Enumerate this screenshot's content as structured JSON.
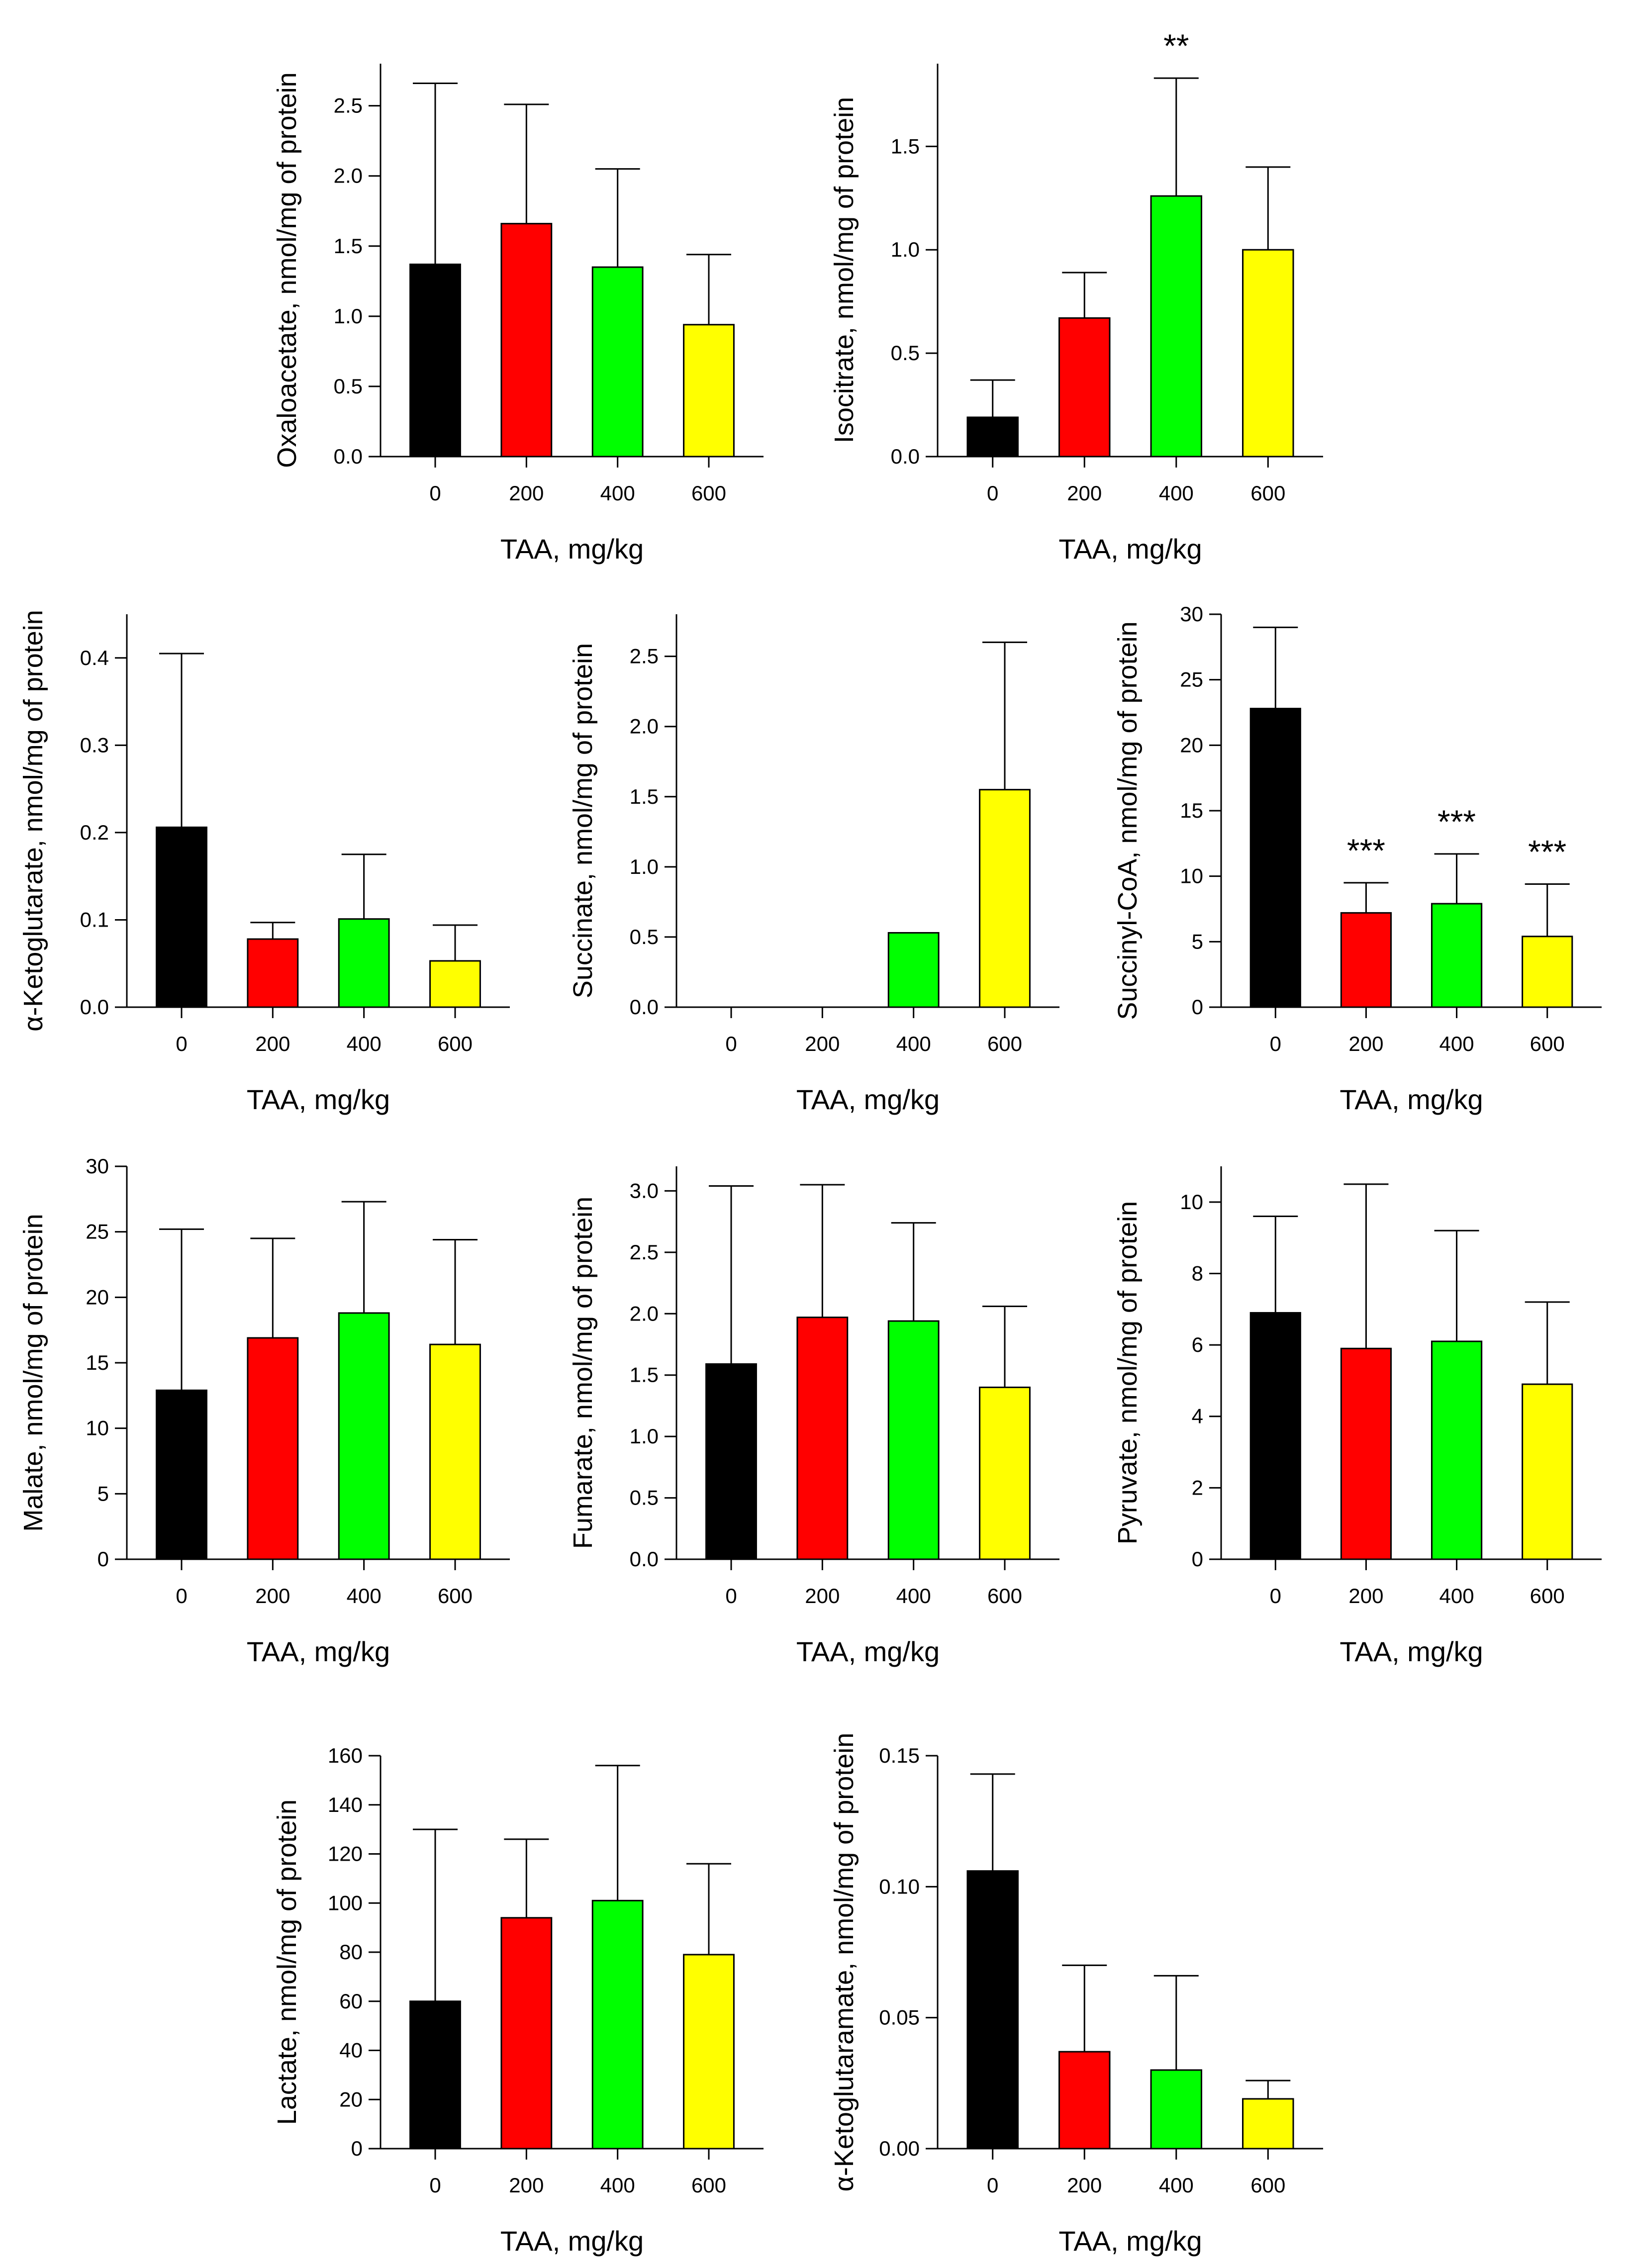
{
  "chart_data": [
    {
      "id": "oxaloacetate",
      "type": "bar",
      "categories": [
        "0",
        "200",
        "400",
        "600"
      ],
      "values": [
        1.37,
        1.66,
        1.35,
        0.94
      ],
      "errors": [
        1.29,
        0.85,
        0.7,
        0.5
      ],
      "significance": [
        "",
        "",
        "",
        ""
      ],
      "colors": [
        "#000000",
        "#ff0000",
        "#00ff00",
        "#ffff00"
      ],
      "ylabel": "Oxaloacetate, nmol/mg of protein",
      "xlabel": "TAA, mg/kg",
      "ylim": [
        0,
        2.8
      ],
      "yticks": [
        "0.0",
        "0.5",
        "1.0",
        "1.5",
        "2.0",
        "2.5"
      ]
    },
    {
      "id": "isocitrate",
      "type": "bar",
      "categories": [
        "0",
        "200",
        "400",
        "600"
      ],
      "values": [
        0.19,
        0.67,
        1.26,
        1.0
      ],
      "errors": [
        0.18,
        0.22,
        0.57,
        0.4
      ],
      "significance": [
        "",
        "",
        "**",
        ""
      ],
      "colors": [
        "#000000",
        "#ff0000",
        "#00ff00",
        "#ffff00"
      ],
      "ylabel": "Isocitrate, nmol/mg of protein",
      "xlabel": "TAA, mg/kg",
      "ylim": [
        0,
        1.9
      ],
      "yticks": [
        "0.0",
        "0.5",
        "1.0",
        "1.5"
      ]
    },
    {
      "id": "alpha-ketoglutarate",
      "type": "bar",
      "categories": [
        "0",
        "200",
        "400",
        "600"
      ],
      "values": [
        0.206,
        0.078,
        0.101,
        0.053
      ],
      "errors": [
        0.199,
        0.019,
        0.074,
        0.041
      ],
      "significance": [
        "",
        "",
        "",
        ""
      ],
      "colors": [
        "#000000",
        "#ff0000",
        "#00ff00",
        "#ffff00"
      ],
      "ylabel": "α-Ketoglutarate, nmol/mg of protein",
      "xlabel": "TAA, mg/kg",
      "ylim": [
        0,
        0.45
      ],
      "yticks": [
        "0.0",
        "0.1",
        "0.2",
        "0.3",
        "0.4"
      ]
    },
    {
      "id": "succinate",
      "type": "bar",
      "categories": [
        "0",
        "200",
        "400",
        "600"
      ],
      "values": [
        0,
        0,
        0.53,
        1.55
      ],
      "errors": [
        0,
        0,
        0,
        1.05
      ],
      "significance": [
        "",
        "",
        "",
        ""
      ],
      "colors": [
        "#000000",
        "#ff0000",
        "#00ff00",
        "#ffff00"
      ],
      "ylabel": "Succinate, nmol/mg of protein",
      "xlabel": "TAA, mg/kg",
      "ylim": [
        0,
        2.8
      ],
      "yticks": [
        "0.0",
        "0.5",
        "1.0",
        "1.5",
        "2.0",
        "2.5"
      ]
    },
    {
      "id": "succinyl-coa",
      "type": "bar",
      "categories": [
        "0",
        "200",
        "400",
        "600"
      ],
      "values": [
        22.8,
        7.2,
        7.9,
        5.4
      ],
      "errors": [
        6.2,
        2.3,
        3.8,
        4.0
      ],
      "significance": [
        "",
        "***",
        "***",
        "***"
      ],
      "colors": [
        "#000000",
        "#ff0000",
        "#00ff00",
        "#ffff00"
      ],
      "ylabel": "Succinyl-CoA, nmol/mg of protein",
      "xlabel": "TAA, mg/kg",
      "ylim": [
        0,
        30
      ],
      "yticks": [
        "0",
        "5",
        "10",
        "15",
        "20",
        "25",
        "30"
      ]
    },
    {
      "id": "malate",
      "type": "bar",
      "categories": [
        "0",
        "200",
        "400",
        "600"
      ],
      "values": [
        12.9,
        16.9,
        18.8,
        16.4
      ],
      "errors": [
        12.3,
        7.6,
        8.5,
        8.0
      ],
      "significance": [
        "",
        "",
        "",
        ""
      ],
      "colors": [
        "#000000",
        "#ff0000",
        "#00ff00",
        "#ffff00"
      ],
      "ylabel": "Malate, nmol/mg of protein",
      "xlabel": "TAA, mg/kg",
      "ylim": [
        0,
        30
      ],
      "yticks": [
        "0",
        "5",
        "10",
        "15",
        "20",
        "25",
        "30"
      ]
    },
    {
      "id": "fumarate",
      "type": "bar",
      "categories": [
        "0",
        "200",
        "400",
        "600"
      ],
      "values": [
        1.59,
        1.97,
        1.94,
        1.4
      ],
      "errors": [
        1.45,
        1.08,
        0.8,
        0.66
      ],
      "significance": [
        "",
        "",
        "",
        ""
      ],
      "colors": [
        "#000000",
        "#ff0000",
        "#00ff00",
        "#ffff00"
      ],
      "ylabel": "Fumarate, nmol/mg of protein",
      "xlabel": "TAA, mg/kg",
      "ylim": [
        0,
        3.2
      ],
      "yticks": [
        "0.0",
        "0.5",
        "1.0",
        "1.5",
        "2.0",
        "2.5",
        "3.0"
      ]
    },
    {
      "id": "pyruvate",
      "type": "bar",
      "categories": [
        "0",
        "200",
        "400",
        "600"
      ],
      "values": [
        6.9,
        5.9,
        6.1,
        4.9
      ],
      "errors": [
        2.7,
        4.6,
        3.1,
        2.3
      ],
      "significance": [
        "",
        "",
        "",
        ""
      ],
      "colors": [
        "#000000",
        "#ff0000",
        "#00ff00",
        "#ffff00"
      ],
      "ylabel": "Pyruvate, nmol/mg of protein",
      "xlabel": "TAA, mg/kg",
      "ylim": [
        0,
        11
      ],
      "yticks": [
        "0",
        "2",
        "4",
        "6",
        "8",
        "10"
      ]
    },
    {
      "id": "lactate",
      "type": "bar",
      "categories": [
        "0",
        "200",
        "400",
        "600"
      ],
      "values": [
        60,
        94,
        101,
        79
      ],
      "errors": [
        70,
        32,
        55,
        37
      ],
      "significance": [
        "",
        "",
        "",
        ""
      ],
      "colors": [
        "#000000",
        "#ff0000",
        "#00ff00",
        "#ffff00"
      ],
      "ylabel": "Lactate, nmol/mg of protein",
      "xlabel": "TAA, mg/kg",
      "ylim": [
        0,
        160
      ],
      "yticks": [
        "0",
        "20",
        "40",
        "60",
        "80",
        "100",
        "120",
        "140",
        "160"
      ]
    },
    {
      "id": "alpha-ketoglutaramate",
      "type": "bar",
      "categories": [
        "0",
        "200",
        "400",
        "600"
      ],
      "values": [
        0.106,
        0.037,
        0.03,
        0.019
      ],
      "errors": [
        0.037,
        0.033,
        0.036,
        0.007
      ],
      "significance": [
        "",
        "",
        "",
        ""
      ],
      "colors": [
        "#000000",
        "#ff0000",
        "#00ff00",
        "#ffff00"
      ],
      "ylabel": "α-Ketoglutaramate, nmol/mg of protein",
      "xlabel": "TAA, mg/kg",
      "ylim": [
        0,
        0.15
      ],
      "yticks": [
        "0.00",
        "0.05",
        "0.10",
        "0.15"
      ]
    }
  ]
}
